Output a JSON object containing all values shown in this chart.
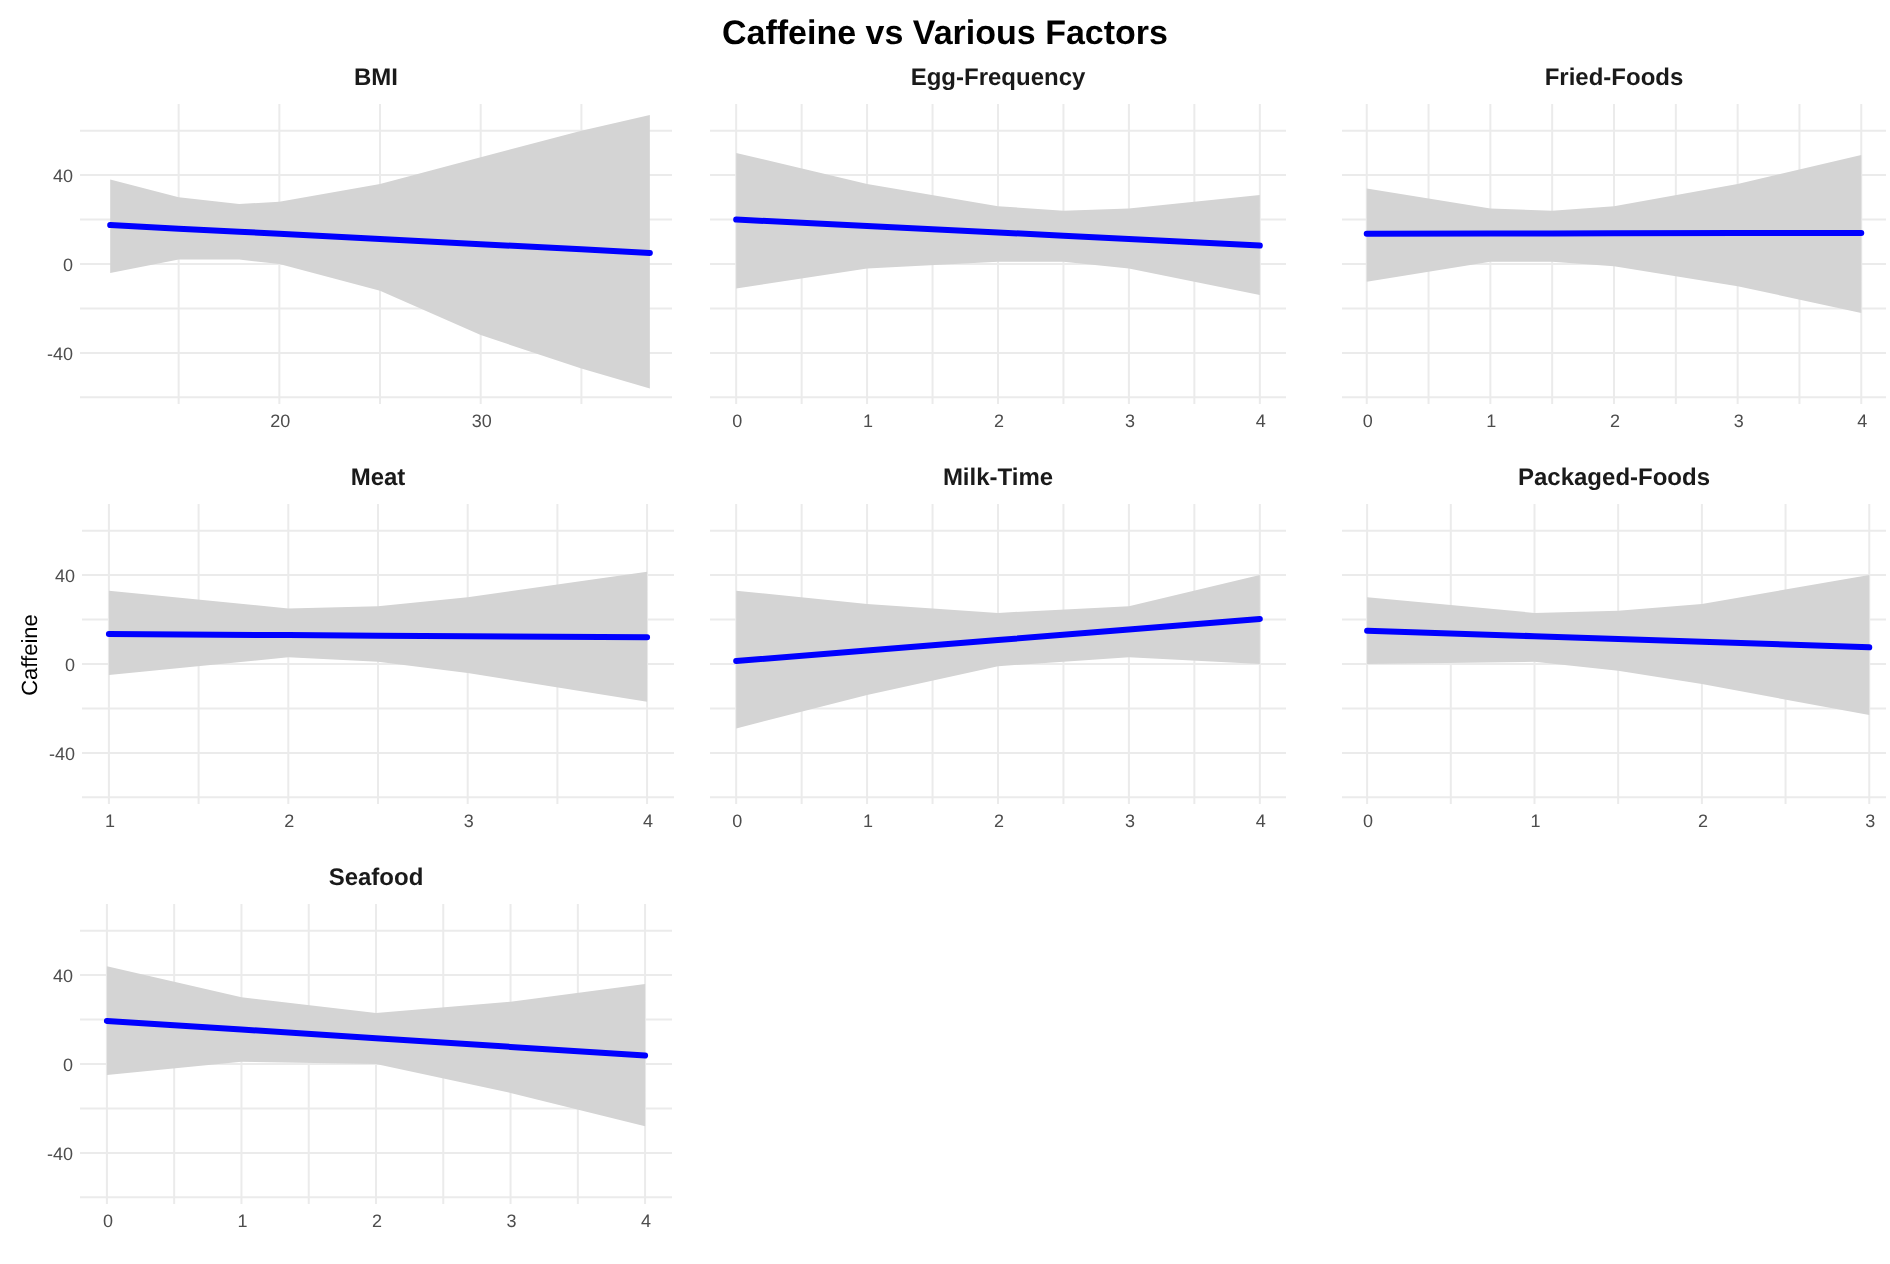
{
  "chart_data": [
    {
      "type": "line",
      "title": "BMI",
      "annotations": [
        "Caffeine vs Various Factors"
      ],
      "x": [
        11.6,
        15,
        18,
        20,
        25,
        30,
        35,
        38.4
      ],
      "xlim": [
        10.1,
        39.5
      ],
      "ylim": [
        -63,
        72
      ],
      "xticks": [
        {
          "value": 15,
          "label": null
        },
        20,
        {
          "value": 25,
          "label": null
        },
        30,
        {
          "value": 35,
          "label": null
        }
      ],
      "yticks": [
        {
          "value": -60,
          "label": null
        },
        -40,
        {
          "value": -20,
          "label": null
        },
        0,
        {
          "value": 20,
          "label": null
        },
        40,
        {
          "value": 60,
          "label": null
        }
      ],
      "grid": true,
      "series": [
        {
          "color": "#0000ff",
          "values": [
            17.5,
            15.9,
            14.5,
            13.6,
            11.2,
            8.9,
            6.6,
            5
          ],
          "lower": [
            -4,
            2,
            2,
            0,
            -12,
            -32,
            -47,
            -56
          ],
          "upper": [
            38,
            30,
            27,
            28,
            36,
            48,
            60,
            67
          ]
        }
      ]
    },
    {
      "type": "line",
      "title": "Egg-Frequency",
      "x": [
        0,
        1,
        2,
        2.5,
        3,
        4
      ],
      "xlim": [
        -0.2,
        4.2
      ],
      "ylim": [
        -63,
        72
      ],
      "xticks": [
        0,
        {
          "value": 0.5,
          "label": null
        },
        1,
        {
          "value": 1.5,
          "label": null
        },
        2,
        {
          "value": 2.5,
          "label": null
        },
        3,
        {
          "value": 3.5,
          "label": null
        },
        4
      ],
      "yticks": [
        {
          "value": -60,
          "label": null
        },
        -40,
        {
          "value": -20,
          "label": null
        },
        0,
        {
          "value": 20,
          "label": null
        },
        40,
        {
          "value": 60,
          "label": null
        }
      ],
      "grid": true,
      "tick_labels": "x",
      "series": [
        {
          "color": "#0000ff",
          "values": [
            20,
            17.1,
            14.2,
            12.7,
            11.2,
            8.3
          ],
          "lower": [
            -11,
            -2,
            1,
            1,
            -2,
            -14
          ],
          "upper": [
            50,
            36,
            26,
            24,
            25,
            31
          ]
        }
      ]
    },
    {
      "type": "line",
      "title": "Fried-Foods",
      "x": [
        0,
        1,
        1.5,
        2,
        3,
        4
      ],
      "xlim": [
        -0.2,
        4.2
      ],
      "ylim": [
        -63,
        72
      ],
      "xticks": [
        0,
        {
          "value": 0.5,
          "label": null
        },
        1,
        {
          "value": 1.5,
          "label": null
        },
        2,
        {
          "value": 2.5,
          "label": null
        },
        3,
        {
          "value": 3.5,
          "label": null
        },
        4
      ],
      "yticks": [
        {
          "value": -60,
          "label": null
        },
        -40,
        {
          "value": -20,
          "label": null
        },
        0,
        {
          "value": 20,
          "label": null
        },
        40,
        {
          "value": 60,
          "label": null
        }
      ],
      "grid": true,
      "tick_labels": "x",
      "series": [
        {
          "color": "#0000ff",
          "values": [
            13.6,
            13.7,
            13.75,
            13.8,
            13.9,
            14
          ],
          "lower": [
            -8,
            1,
            1,
            -1,
            -10,
            -22
          ],
          "upper": [
            34,
            25,
            24,
            26,
            36,
            49
          ]
        }
      ]
    },
    {
      "type": "line",
      "title": "Meat",
      "ylabel": "Caffeine",
      "x": [
        1,
        2,
        2.5,
        3,
        4
      ],
      "xlim": [
        0.85,
        4.15
      ],
      "ylim": [
        -63,
        72
      ],
      "xticks": [
        1,
        {
          "value": 1.5,
          "label": null
        },
        2,
        {
          "value": 2.5,
          "label": null
        },
        3,
        {
          "value": 3.5,
          "label": null
        },
        4
      ],
      "yticks": [
        {
          "value": -60,
          "label": null
        },
        -40,
        {
          "value": -20,
          "label": null
        },
        0,
        {
          "value": 20,
          "label": null
        },
        40,
        {
          "value": 60,
          "label": null
        }
      ],
      "grid": true,
      "series": [
        {
          "color": "#0000ff",
          "values": [
            13.5,
            13,
            12.75,
            12.5,
            12
          ],
          "lower": [
            -5,
            3,
            1,
            -4,
            -17
          ],
          "upper": [
            33,
            25,
            26,
            30,
            41.5
          ]
        }
      ]
    },
    {
      "type": "line",
      "title": "Milk-Time",
      "x": [
        0,
        1,
        2,
        3,
        4
      ],
      "xlim": [
        -0.2,
        4.2
      ],
      "ylim": [
        -63,
        72
      ],
      "xticks": [
        0,
        {
          "value": 0.5,
          "label": null
        },
        1,
        {
          "value": 1.5,
          "label": null
        },
        2,
        {
          "value": 2.5,
          "label": null
        },
        3,
        {
          "value": 3.5,
          "label": null
        },
        4
      ],
      "yticks": [
        {
          "value": -60,
          "label": null
        },
        -40,
        {
          "value": -20,
          "label": null
        },
        0,
        {
          "value": 20,
          "label": null
        },
        40,
        {
          "value": 60,
          "label": null
        }
      ],
      "grid": true,
      "tick_labels": "x",
      "series": [
        {
          "color": "#0000ff",
          "values": [
            1.3,
            6.1,
            10.8,
            15.5,
            20.3
          ],
          "lower": [
            -29,
            -14,
            -1,
            3,
            0
          ],
          "upper": [
            33,
            27,
            23,
            26,
            40
          ]
        }
      ]
    },
    {
      "type": "line",
      "title": "Packaged-Foods",
      "x": [
        0,
        1,
        1.5,
        2,
        3
      ],
      "xlim": [
        -0.15,
        3.1
      ],
      "ylim": [
        -63,
        72
      ],
      "xticks": [
        0,
        {
          "value": 0.5,
          "label": null
        },
        1,
        {
          "value": 1.5,
          "label": null
        },
        2,
        {
          "value": 2.5,
          "label": null
        },
        3
      ],
      "yticks": [
        {
          "value": -60,
          "label": null
        },
        -40,
        {
          "value": -20,
          "label": null
        },
        0,
        {
          "value": 20,
          "label": null
        },
        40,
        {
          "value": 60,
          "label": null
        }
      ],
      "grid": true,
      "tick_labels": "x",
      "series": [
        {
          "color": "#0000ff",
          "values": [
            15,
            12.5,
            11.25,
            10,
            7.5
          ],
          "lower": [
            0,
            1,
            -3,
            -9,
            -23
          ],
          "upper": [
            30,
            23,
            24,
            27,
            40
          ]
        }
      ]
    },
    {
      "type": "line",
      "title": "Seafood",
      "x": [
        0,
        1,
        2,
        3,
        4
      ],
      "xlim": [
        -0.2,
        4.2
      ],
      "ylim": [
        -63,
        72
      ],
      "xticks": [
        0,
        {
          "value": 0.5,
          "label": null
        },
        1,
        {
          "value": 1.5,
          "label": null
        },
        2,
        {
          "value": 2.5,
          "label": null
        },
        3,
        {
          "value": 3.5,
          "label": null
        },
        4
      ],
      "yticks": [
        {
          "value": -60,
          "label": null
        },
        -40,
        {
          "value": -20,
          "label": null
        },
        0,
        {
          "value": 20,
          "label": null
        },
        40,
        {
          "value": 60,
          "label": null
        }
      ],
      "grid": true,
      "series": [
        {
          "color": "#0000ff",
          "values": [
            19.4,
            15.5,
            11.6,
            7.7,
            3.8
          ],
          "lower": [
            -5,
            1,
            0,
            -13,
            -28
          ],
          "upper": [
            44,
            30,
            23,
            28,
            36
          ]
        }
      ]
    }
  ]
}
